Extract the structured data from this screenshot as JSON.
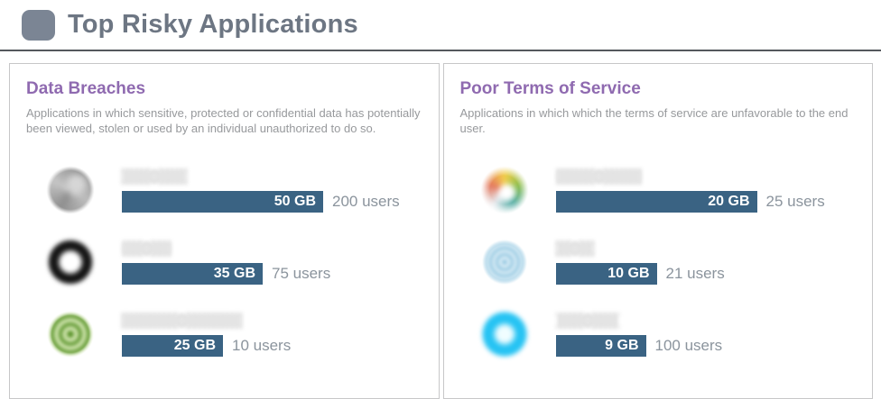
{
  "header": {
    "icon": "rounded-square-bullet-icon",
    "title": "Top Risky Applications"
  },
  "panels": [
    {
      "title": "Data Breaches",
      "description": "Applications in which sensitive, protected or confidential data has potentially been viewed, stolen or used by an individual unauthorized to do so.",
      "max_gb": 50,
      "rows": [
        {
          "icon": "blurred-gray-swirl-app-logo",
          "app_name_redacted": true,
          "gb": 50,
          "gb_label": "50 GB",
          "users": 200,
          "users_label": "200 users"
        },
        {
          "icon": "blurred-black-ring-app-logo",
          "app_name_redacted": true,
          "gb": 35,
          "gb_label": "35 GB",
          "users": 75,
          "users_label": "75 users"
        },
        {
          "icon": "blurred-green-rings-app-logo",
          "app_name_redacted": true,
          "gb": 25,
          "gb_label": "25 GB",
          "users": 10,
          "users_label": "10 users"
        }
      ]
    },
    {
      "title": "Poor Terms of Service",
      "description": "Applications in which which the terms of service are unfavorable to the end user.",
      "max_gb": 20,
      "rows": [
        {
          "icon": "blurred-multicolor-swirl-app-logo",
          "app_name_redacted": true,
          "gb": 20,
          "gb_label": "20 GB",
          "users": 25,
          "users_label": "25 users"
        },
        {
          "icon": "blurred-blue-rings-app-logo",
          "app_name_redacted": true,
          "gb": 10,
          "gb_label": "10 GB",
          "users": 21,
          "users_label": "21 users"
        },
        {
          "icon": "blurred-cyan-donut-app-logo",
          "app_name_redacted": true,
          "gb": 9,
          "gb_label": "9 GB",
          "users": 100,
          "users_label": "100 users"
        }
      ]
    }
  ],
  "colors": {
    "bar": "#3a6383",
    "panel_title": "#8f6ab0",
    "header_title": "#6d7683",
    "header_bullet": "#7b8594",
    "users_text": "#8b949d",
    "description_text": "#97999c",
    "panel_border": "#c7c7c8"
  },
  "chart_data": [
    {
      "type": "bar",
      "title": "Data Breaches",
      "categories": [
        "redacted-app-1",
        "redacted-app-2",
        "redacted-app-3"
      ],
      "series": [
        {
          "name": "GB",
          "values": [
            50,
            35,
            25
          ]
        },
        {
          "name": "users",
          "values": [
            200,
            75,
            10
          ]
        }
      ],
      "xlabel": "",
      "ylabel": "GB",
      "legend": "off",
      "grid": "off"
    },
    {
      "type": "bar",
      "title": "Poor Terms of Service",
      "categories": [
        "redacted-app-1",
        "redacted-app-2",
        "redacted-app-3"
      ],
      "series": [
        {
          "name": "GB",
          "values": [
            20,
            10,
            9
          ]
        },
        {
          "name": "users",
          "values": [
            25,
            21,
            100
          ]
        }
      ],
      "xlabel": "",
      "ylabel": "GB",
      "legend": "off",
      "grid": "off"
    }
  ]
}
